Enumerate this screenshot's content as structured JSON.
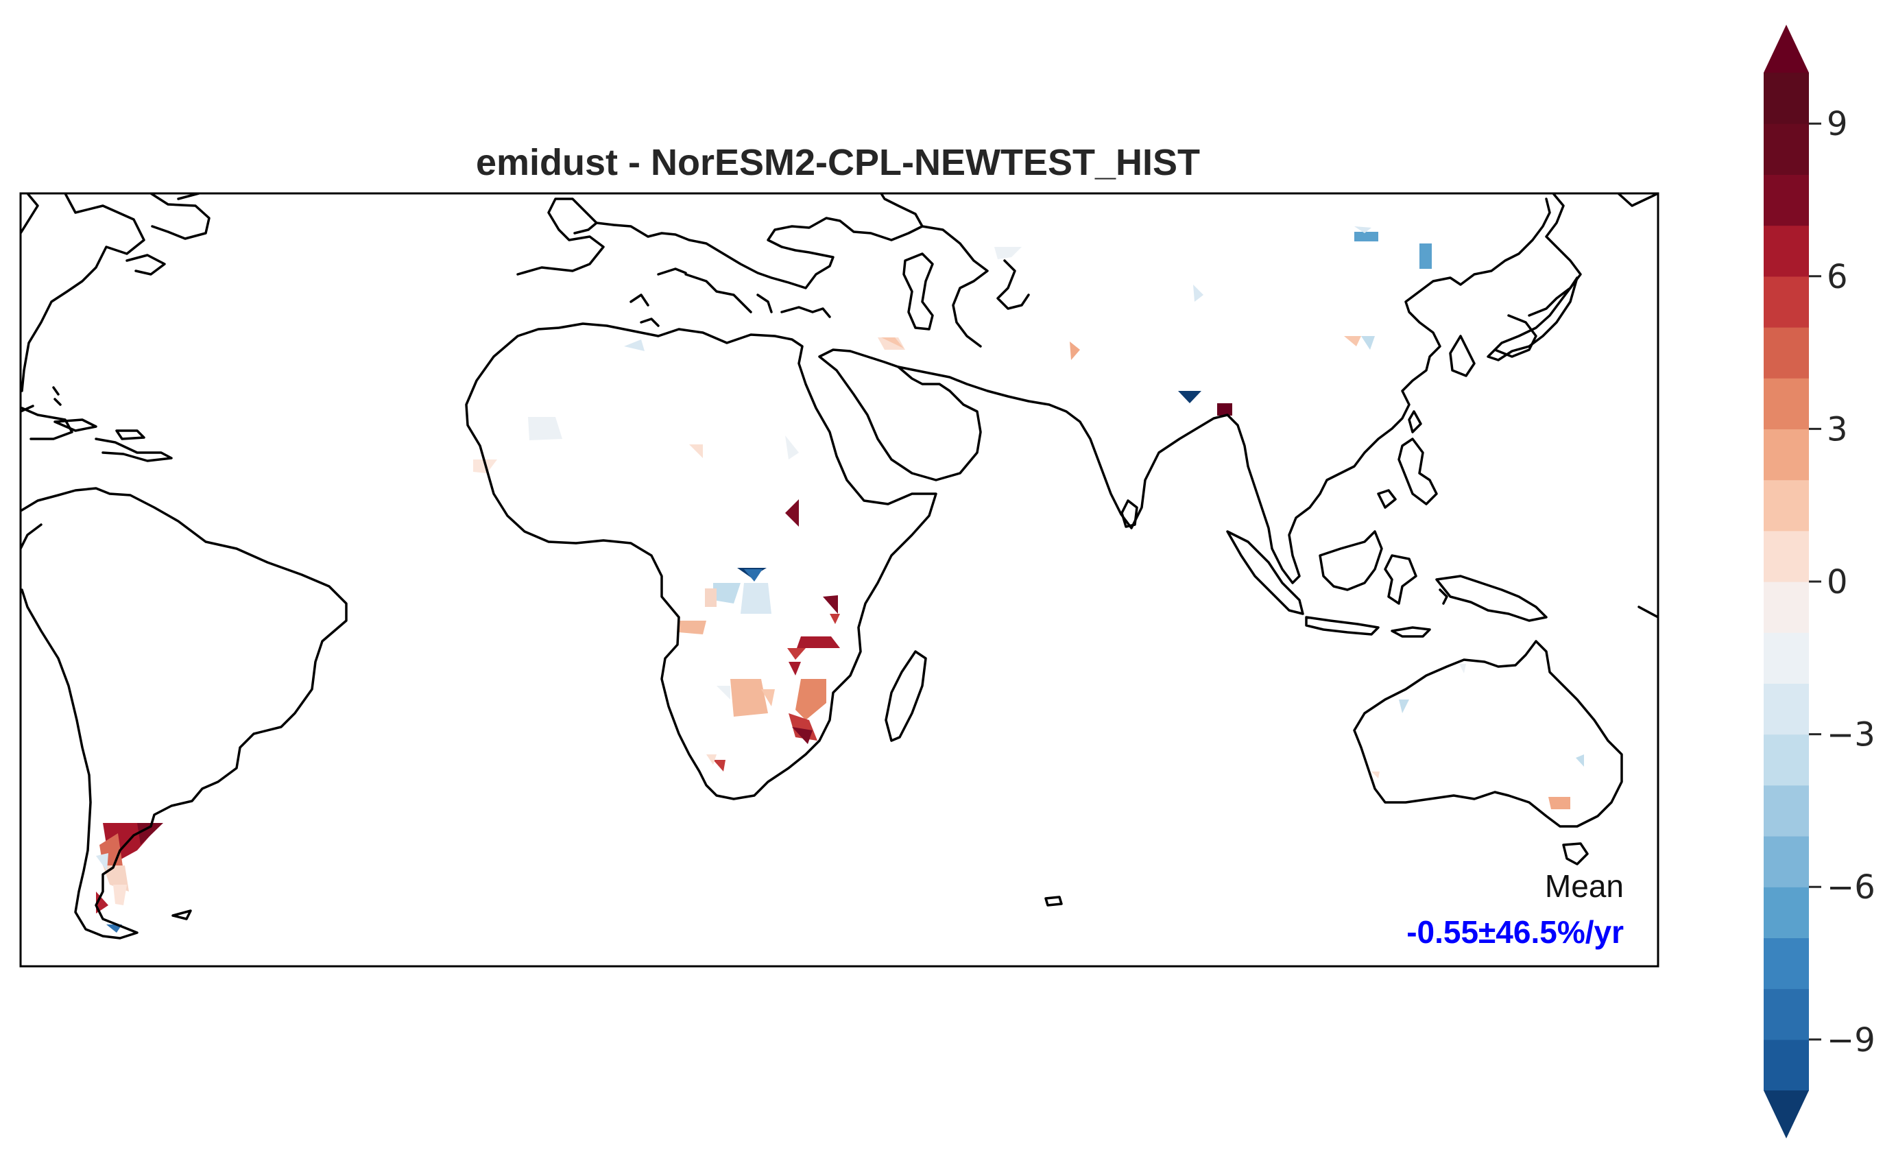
{
  "title": "emidust - NorESM2-CPL-NEWTEST_HIST",
  "stat": {
    "label": "Mean",
    "value": "-0.55±46.5%/yr"
  },
  "colorbar": {
    "levels": [
      -10,
      -9,
      -8,
      -7,
      -6,
      -5,
      -4,
      -3,
      -2,
      -1,
      0,
      1,
      2,
      3,
      4,
      5,
      6,
      7,
      8,
      9,
      10
    ],
    "colors": [
      "#1b5a9a",
      "#2a6fae",
      "#3a84bf",
      "#5aa1cd",
      "#7db5d8",
      "#a0c9e2",
      "#c2ddec",
      "#d9e8f2",
      "#ecf1f5",
      "#f6eeec",
      "#fadfd2",
      "#f8c7ad",
      "#f1a987",
      "#e58867",
      "#d5624d",
      "#c43a3a",
      "#a81a2c",
      "#7d0b24",
      "#670a1f",
      "#5b0a1d"
    ],
    "under_color": "#0d3b70",
    "over_color": "#67001f",
    "ticks": [
      {
        "value": 9,
        "label": "9"
      },
      {
        "value": 6,
        "label": "6"
      },
      {
        "value": 3,
        "label": "3"
      },
      {
        "value": 0,
        "label": "0"
      },
      {
        "value": -3,
        "label": "−3"
      },
      {
        "value": -6,
        "label": "−6"
      },
      {
        "value": -9,
        "label": "−9"
      }
    ],
    "extend": "both"
  },
  "features": [
    "world-coastlines",
    "dust-emission-trend-anomalies"
  ]
}
